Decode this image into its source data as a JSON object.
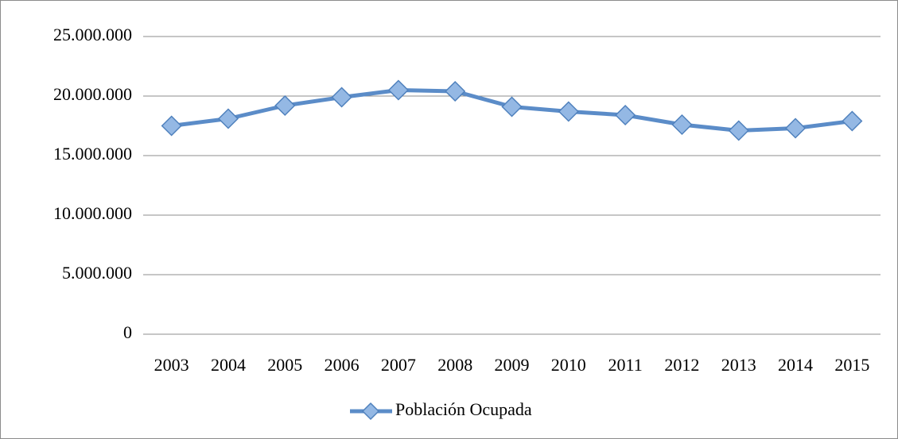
{
  "chart_data": {
    "type": "line",
    "categories": [
      "2003",
      "2004",
      "2005",
      "2006",
      "2007",
      "2008",
      "2009",
      "2010",
      "2011",
      "2012",
      "2013",
      "2014",
      "2015"
    ],
    "series": [
      {
        "name": "Población Ocupada",
        "color": "#5b8cc8",
        "values": [
          17500000,
          18100000,
          19200000,
          19900000,
          20500000,
          20400000,
          19100000,
          18700000,
          18400000,
          17600000,
          17100000,
          17300000,
          17900000
        ]
      }
    ],
    "ylim": [
      0,
      25000000
    ],
    "yticks": [
      0,
      {
        "value": 5000000,
        "label": "5.000.000"
      },
      {
        "value": 10000000,
        "label": "10.000.000"
      },
      {
        "value": 15000000,
        "label": "15.000.000"
      },
      {
        "value": 20000000,
        "label": "20.000.000"
      },
      {
        "value": 25000000,
        "label": "25.000.000"
      }
    ],
    "grid": true,
    "legend": "bottom"
  }
}
